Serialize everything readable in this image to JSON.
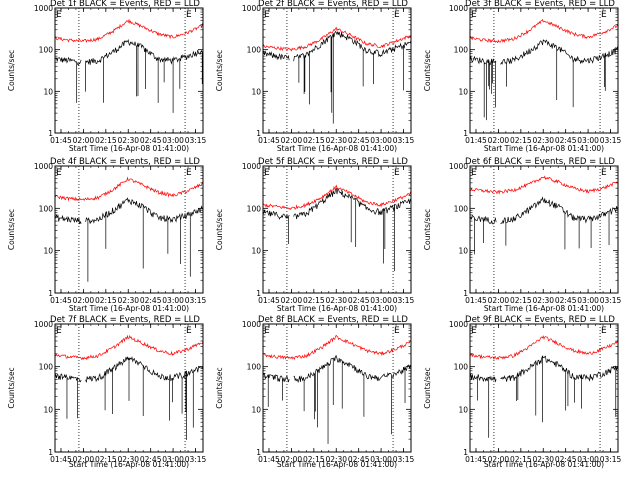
{
  "figure": {
    "x_tick_labels": [
      "01:45",
      "02:00",
      "02:15",
      "02:30",
      "02:45",
      "03:00",
      "03:15"
    ],
    "x_label": "Start Time (16-Apr-08 01:41:00)",
    "y_label": "Counts/sec",
    "y_tick_labels": [
      "1",
      "10",
      "100",
      "1000"
    ],
    "corner_marks": [
      "E",
      "E"
    ],
    "colors": {
      "events": "#000000",
      "lld": "#ff0000",
      "axes": "#000000",
      "marker_lines": "#000000"
    }
  },
  "chart_data": [
    {
      "type": "line",
      "title": "Det 1f BLACK = Events, RED = LLD",
      "time_range": [
        "01:41",
        "03:20"
      ],
      "ylim": [
        1,
        1000
      ],
      "y_scale": "log",
      "grid": false,
      "markers": [
        "01:57",
        "03:08"
      ],
      "series": [
        {
          "name": "Events",
          "color": "#000000",
          "x": [
            "01:41",
            "01:50",
            "02:00",
            "02:10",
            "02:20",
            "02:30",
            "02:40",
            "02:50",
            "03:00",
            "03:10",
            "03:20"
          ],
          "values": [
            60,
            55,
            50,
            55,
            90,
            160,
            110,
            60,
            55,
            70,
            100
          ]
        },
        {
          "name": "LLD",
          "color": "#ff0000",
          "x": [
            "01:41",
            "01:50",
            "02:00",
            "02:10",
            "02:20",
            "02:30",
            "02:40",
            "02:50",
            "03:00",
            "03:10",
            "03:20"
          ],
          "values": [
            190,
            170,
            160,
            180,
            280,
            500,
            350,
            240,
            200,
            260,
            380
          ]
        }
      ]
    },
    {
      "type": "line",
      "title": "Det 2f BLACK = Events, RED = LLD",
      "time_range": [
        "01:41",
        "03:20"
      ],
      "ylim": [
        1,
        1000
      ],
      "y_scale": "log",
      "grid": false,
      "markers": [
        "01:57",
        "03:08"
      ],
      "series": [
        {
          "name": "Events",
          "color": "#000000",
          "x": [
            "01:41",
            "01:50",
            "02:00",
            "02:10",
            "02:20",
            "02:30",
            "02:40",
            "02:50",
            "03:00",
            "03:10",
            "03:20"
          ],
          "values": [
            80,
            70,
            60,
            75,
            140,
            260,
            180,
            100,
            80,
            110,
            150
          ]
        },
        {
          "name": "LLD",
          "color": "#ff0000",
          "x": [
            "01:41",
            "01:50",
            "02:00",
            "02:10",
            "02:20",
            "02:30",
            "02:40",
            "02:50",
            "03:00",
            "03:10",
            "03:20"
          ],
          "values": [
            120,
            110,
            100,
            120,
            180,
            320,
            220,
            140,
            120,
            160,
            220
          ]
        }
      ]
    },
    {
      "type": "line",
      "title": "Det 3f BLACK = Events, RED = LLD",
      "time_range": [
        "01:41",
        "03:20"
      ],
      "ylim": [
        1,
        1000
      ],
      "y_scale": "log",
      "grid": false,
      "markers": [
        "01:57",
        "03:08"
      ],
      "series": [
        {
          "name": "Events",
          "color": "#000000",
          "x": [
            "01:41",
            "01:50",
            "02:00",
            "02:10",
            "02:20",
            "02:30",
            "02:40",
            "02:50",
            "03:00",
            "03:10",
            "03:20"
          ],
          "values": [
            60,
            55,
            50,
            55,
            90,
            160,
            110,
            60,
            55,
            70,
            100
          ]
        },
        {
          "name": "LLD",
          "color": "#ff0000",
          "x": [
            "01:41",
            "01:50",
            "02:00",
            "02:10",
            "02:20",
            "02:30",
            "02:40",
            "02:50",
            "03:00",
            "03:10",
            "03:20"
          ],
          "values": [
            190,
            170,
            160,
            180,
            280,
            500,
            350,
            240,
            200,
            260,
            380
          ]
        }
      ]
    },
    {
      "type": "line",
      "title": "Det 4f BLACK = Events, RED = LLD",
      "time_range": [
        "01:41",
        "03:20"
      ],
      "ylim": [
        1,
        1000
      ],
      "y_scale": "log",
      "grid": false,
      "markers": [
        "01:57",
        "03:08"
      ],
      "series": [
        {
          "name": "Events",
          "color": "#000000",
          "x": [
            "01:41",
            "01:50",
            "02:00",
            "02:10",
            "02:20",
            "02:30",
            "02:40",
            "02:50",
            "03:00",
            "03:10",
            "03:20"
          ],
          "values": [
            60,
            55,
            50,
            55,
            90,
            160,
            110,
            60,
            55,
            70,
            100
          ]
        },
        {
          "name": "LLD",
          "color": "#ff0000",
          "x": [
            "01:41",
            "01:50",
            "02:00",
            "02:10",
            "02:20",
            "02:30",
            "02:40",
            "02:50",
            "03:00",
            "03:10",
            "03:20"
          ],
          "values": [
            190,
            170,
            160,
            180,
            280,
            500,
            350,
            240,
            200,
            260,
            380
          ]
        }
      ]
    },
    {
      "type": "line",
      "title": "Det 5f BLACK = Events, RED = LLD",
      "time_range": [
        "01:41",
        "03:20"
      ],
      "ylim": [
        1,
        1000
      ],
      "y_scale": "log",
      "grid": false,
      "markers": [
        "01:57",
        "03:08"
      ],
      "series": [
        {
          "name": "Events",
          "color": "#000000",
          "x": [
            "01:41",
            "01:50",
            "02:00",
            "02:10",
            "02:20",
            "02:30",
            "02:40",
            "02:50",
            "03:00",
            "03:10",
            "03:20"
          ],
          "values": [
            80,
            70,
            60,
            75,
            140,
            260,
            180,
            100,
            80,
            110,
            150
          ]
        },
        {
          "name": "LLD",
          "color": "#ff0000",
          "x": [
            "01:41",
            "01:50",
            "02:00",
            "02:10",
            "02:20",
            "02:30",
            "02:40",
            "02:50",
            "03:00",
            "03:10",
            "03:20"
          ],
          "values": [
            120,
            110,
            100,
            120,
            180,
            320,
            220,
            140,
            120,
            160,
            220
          ]
        }
      ]
    },
    {
      "type": "line",
      "title": "Det 6f BLACK = Events, RED = LLD",
      "time_range": [
        "01:41",
        "03:20"
      ],
      "ylim": [
        1,
        1000
      ],
      "y_scale": "log",
      "grid": false,
      "markers": [
        "01:57",
        "03:08"
      ],
      "series": [
        {
          "name": "Events",
          "color": "#000000",
          "x": [
            "01:41",
            "01:50",
            "02:00",
            "02:10",
            "02:20",
            "02:30",
            "02:40",
            "02:50",
            "03:00",
            "03:10",
            "03:20"
          ],
          "values": [
            60,
            55,
            50,
            55,
            90,
            160,
            110,
            60,
            55,
            70,
            100
          ]
        },
        {
          "name": "LLD",
          "color": "#ff0000",
          "x": [
            "01:41",
            "01:50",
            "02:00",
            "02:10",
            "02:20",
            "02:30",
            "02:40",
            "02:50",
            "03:00",
            "03:10",
            "03:20"
          ],
          "values": [
            280,
            260,
            240,
            270,
            360,
            550,
            420,
            300,
            250,
            300,
            420
          ]
        }
      ]
    },
    {
      "type": "line",
      "title": "Det 7f BLACK = Events, RED = LLD",
      "time_range": [
        "01:41",
        "03:20"
      ],
      "ylim": [
        1,
        1000
      ],
      "y_scale": "log",
      "grid": false,
      "markers": [
        "01:57",
        "03:08"
      ],
      "series": [
        {
          "name": "Events",
          "color": "#000000",
          "x": [
            "01:41",
            "01:50",
            "02:00",
            "02:10",
            "02:20",
            "02:30",
            "02:40",
            "02:50",
            "03:00",
            "03:10",
            "03:20"
          ],
          "values": [
            60,
            55,
            50,
            55,
            90,
            160,
            110,
            60,
            55,
            70,
            100
          ]
        },
        {
          "name": "LLD",
          "color": "#ff0000",
          "x": [
            "01:41",
            "01:50",
            "02:00",
            "02:10",
            "02:20",
            "02:30",
            "02:40",
            "02:50",
            "03:00",
            "03:10",
            "03:20"
          ],
          "values": [
            190,
            170,
            160,
            180,
            280,
            500,
            350,
            240,
            200,
            260,
            380
          ]
        }
      ]
    },
    {
      "type": "line",
      "title": "Det 8f BLACK = Events, RED = LLD",
      "time_range": [
        "01:41",
        "03:20"
      ],
      "ylim": [
        1,
        1000
      ],
      "y_scale": "log",
      "grid": false,
      "markers": [
        "01:57",
        "03:08"
      ],
      "series": [
        {
          "name": "Events",
          "color": "#000000",
          "x": [
            "01:41",
            "01:50",
            "02:00",
            "02:10",
            "02:20",
            "02:30",
            "02:40",
            "02:50",
            "03:00",
            "03:10",
            "03:20"
          ],
          "values": [
            60,
            55,
            50,
            55,
            90,
            160,
            110,
            60,
            55,
            70,
            100
          ]
        },
        {
          "name": "LLD",
          "color": "#ff0000",
          "x": [
            "01:41",
            "01:50",
            "02:00",
            "02:10",
            "02:20",
            "02:30",
            "02:40",
            "02:50",
            "03:00",
            "03:10",
            "03:20"
          ],
          "values": [
            190,
            170,
            160,
            180,
            280,
            500,
            350,
            240,
            200,
            260,
            380
          ]
        }
      ]
    },
    {
      "type": "line",
      "title": "Det 9f BLACK = Events, RED = LLD",
      "time_range": [
        "01:41",
        "03:20"
      ],
      "ylim": [
        1,
        1000
      ],
      "y_scale": "log",
      "grid": false,
      "markers": [
        "01:57",
        "03:08"
      ],
      "series": [
        {
          "name": "Events",
          "color": "#000000",
          "x": [
            "01:41",
            "01:50",
            "02:00",
            "02:10",
            "02:20",
            "02:30",
            "02:40",
            "02:50",
            "03:00",
            "03:10",
            "03:20"
          ],
          "values": [
            60,
            55,
            50,
            55,
            90,
            160,
            110,
            60,
            55,
            70,
            100
          ]
        },
        {
          "name": "LLD",
          "color": "#ff0000",
          "x": [
            "01:41",
            "01:50",
            "02:00",
            "02:10",
            "02:20",
            "02:30",
            "02:40",
            "02:50",
            "03:00",
            "03:10",
            "03:20"
          ],
          "values": [
            190,
            170,
            160,
            180,
            280,
            500,
            350,
            240,
            200,
            260,
            380
          ]
        }
      ]
    }
  ]
}
